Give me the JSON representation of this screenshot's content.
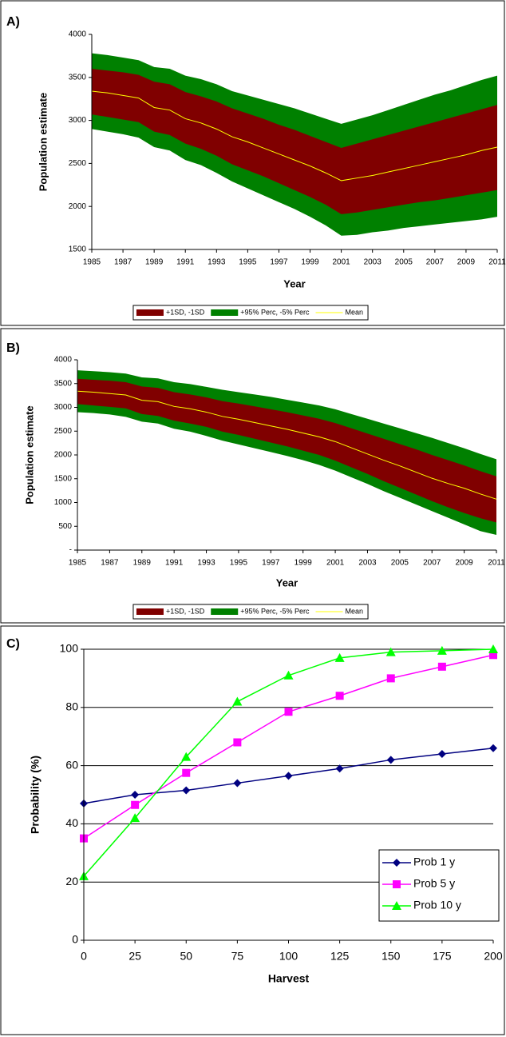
{
  "chart_data": [
    {
      "type": "band",
      "label": "A)",
      "x_label": "Year",
      "y_label": "Population estimate",
      "x": [
        1985,
        1986,
        1987,
        1988,
        1989,
        1990,
        1991,
        1992,
        1993,
        1994,
        1995,
        1996,
        1997,
        1998,
        1999,
        2000,
        2001,
        2002,
        2003,
        2004,
        2005,
        2006,
        2007,
        2008,
        2009,
        2010,
        2011
      ],
      "xlim": [
        1985,
        2011
      ],
      "xticks": [
        1985,
        1987,
        1989,
        1991,
        1993,
        1995,
        1997,
        1999,
        2001,
        2003,
        2005,
        2007,
        2009,
        2011
      ],
      "ylim": [
        1500,
        4000
      ],
      "yticks": [
        1500,
        2000,
        2500,
        3000,
        3500,
        4000
      ],
      "grid": false,
      "legend": "bottom",
      "series": [
        {
          "name": "+1SD, -1SD",
          "color": "#800000",
          "upper": [
            3600,
            3580,
            3560,
            3530,
            3450,
            3420,
            3330,
            3280,
            3220,
            3140,
            3080,
            3020,
            2950,
            2890,
            2820,
            2750,
            2680,
            2730,
            2780,
            2830,
            2880,
            2930,
            2980,
            3030,
            3080,
            3130,
            3180
          ],
          "lower": [
            3070,
            3040,
            3010,
            2980,
            2870,
            2830,
            2730,
            2670,
            2590,
            2490,
            2420,
            2350,
            2270,
            2190,
            2110,
            2020,
            1910,
            1930,
            1960,
            1990,
            2020,
            2050,
            2070,
            2100,
            2130,
            2160,
            2190
          ]
        },
        {
          "name": "+95% Perc, -5% Perc",
          "color": "#008000",
          "upper": [
            3780,
            3760,
            3730,
            3700,
            3620,
            3600,
            3520,
            3480,
            3420,
            3340,
            3290,
            3240,
            3190,
            3140,
            3080,
            3020,
            2960,
            3010,
            3060,
            3120,
            3180,
            3240,
            3300,
            3350,
            3410,
            3470,
            3520
          ],
          "lower": [
            2900,
            2870,
            2840,
            2800,
            2690,
            2650,
            2540,
            2480,
            2390,
            2290,
            2210,
            2130,
            2050,
            1970,
            1880,
            1780,
            1660,
            1670,
            1700,
            1720,
            1750,
            1770,
            1790,
            1810,
            1830,
            1850,
            1880
          ]
        },
        {
          "name": "Mean",
          "color": "#ffff00",
          "values": [
            3340,
            3320,
            3290,
            3260,
            3150,
            3120,
            3020,
            2970,
            2900,
            2810,
            2750,
            2680,
            2610,
            2540,
            2470,
            2390,
            2300,
            2330,
            2360,
            2400,
            2440,
            2480,
            2520,
            2560,
            2600,
            2650,
            2690
          ]
        }
      ]
    },
    {
      "type": "band",
      "label": "B)",
      "x_label": "Year",
      "y_label": "Population estimate",
      "x": [
        1985,
        1986,
        1987,
        1988,
        1989,
        1990,
        1991,
        1992,
        1993,
        1994,
        1995,
        1996,
        1997,
        1998,
        1999,
        2000,
        2001,
        2002,
        2003,
        2004,
        2005,
        2006,
        2007,
        2008,
        2009,
        2010,
        2011
      ],
      "xlim": [
        1985,
        2011
      ],
      "xticks": [
        1985,
        1987,
        1989,
        1991,
        1993,
        1995,
        1997,
        1999,
        2001,
        2003,
        2005,
        2007,
        2009,
        2011
      ],
      "ylim": [
        0,
        4000
      ],
      "yticks": [
        {
          "value": 0,
          "label": "-"
        },
        500,
        1000,
        1500,
        2000,
        2500,
        3000,
        3500,
        4000
      ],
      "grid": false,
      "legend": "bottom",
      "series": [
        {
          "name": "+1SD, -1SD",
          "color": "#800000",
          "upper": [
            3600,
            3580,
            3560,
            3530,
            3440,
            3410,
            3320,
            3270,
            3210,
            3130,
            3080,
            3020,
            2960,
            2900,
            2830,
            2760,
            2670,
            2560,
            2450,
            2340,
            2230,
            2120,
            2000,
            1890,
            1780,
            1660,
            1550
          ],
          "lower": [
            3070,
            3040,
            3010,
            2980,
            2860,
            2820,
            2720,
            2660,
            2590,
            2490,
            2420,
            2340,
            2260,
            2180,
            2090,
            2000,
            1880,
            1740,
            1600,
            1450,
            1310,
            1170,
            1030,
            900,
            780,
            670,
            580
          ]
        },
        {
          "name": "+95% Perc, -5% Perc",
          "color": "#008000",
          "upper": [
            3780,
            3760,
            3740,
            3710,
            3630,
            3610,
            3530,
            3490,
            3430,
            3370,
            3320,
            3270,
            3220,
            3160,
            3100,
            3040,
            2960,
            2860,
            2760,
            2660,
            2560,
            2460,
            2360,
            2250,
            2140,
            2020,
            1910
          ],
          "lower": [
            2900,
            2880,
            2850,
            2800,
            2700,
            2660,
            2550,
            2490,
            2400,
            2300,
            2220,
            2140,
            2060,
            1980,
            1890,
            1790,
            1670,
            1530,
            1390,
            1240,
            1100,
            960,
            820,
            680,
            540,
            400,
            320
          ]
        },
        {
          "name": "Mean",
          "color": "#ffff00",
          "values": [
            3340,
            3320,
            3290,
            3260,
            3150,
            3120,
            3020,
            2970,
            2900,
            2810,
            2750,
            2680,
            2610,
            2540,
            2460,
            2380,
            2280,
            2150,
            2020,
            1890,
            1770,
            1640,
            1510,
            1400,
            1300,
            1180,
            1070
          ]
        }
      ]
    },
    {
      "type": "line",
      "label": "C)",
      "x_label": "Harvest",
      "y_label": "Probability (%)",
      "x": [
        0,
        25,
        50,
        75,
        100,
        125,
        150,
        175,
        200
      ],
      "xlim": [
        0,
        200
      ],
      "xticks": [
        0,
        25,
        50,
        75,
        100,
        125,
        150,
        175,
        200
      ],
      "ylim": [
        0,
        100
      ],
      "yticks": [
        0,
        20,
        40,
        60,
        80,
        100
      ],
      "grid": true,
      "legend": "lower right",
      "series": [
        {
          "name": "Prob 1 y",
          "color": "#000080",
          "marker": "diamond",
          "values": [
            47,
            50,
            51.5,
            54,
            56.5,
            59,
            62,
            64,
            66
          ]
        },
        {
          "name": "Prob 5 y",
          "color": "#ff00ff",
          "marker": "square",
          "values": [
            35,
            46.5,
            57.5,
            68,
            78.5,
            84,
            90,
            94,
            98
          ]
        },
        {
          "name": "Prob 10 y",
          "color": "#00ff00",
          "marker": "triangle",
          "values": [
            22,
            42,
            63,
            82,
            91,
            97,
            99,
            99.5,
            100
          ]
        }
      ]
    }
  ]
}
